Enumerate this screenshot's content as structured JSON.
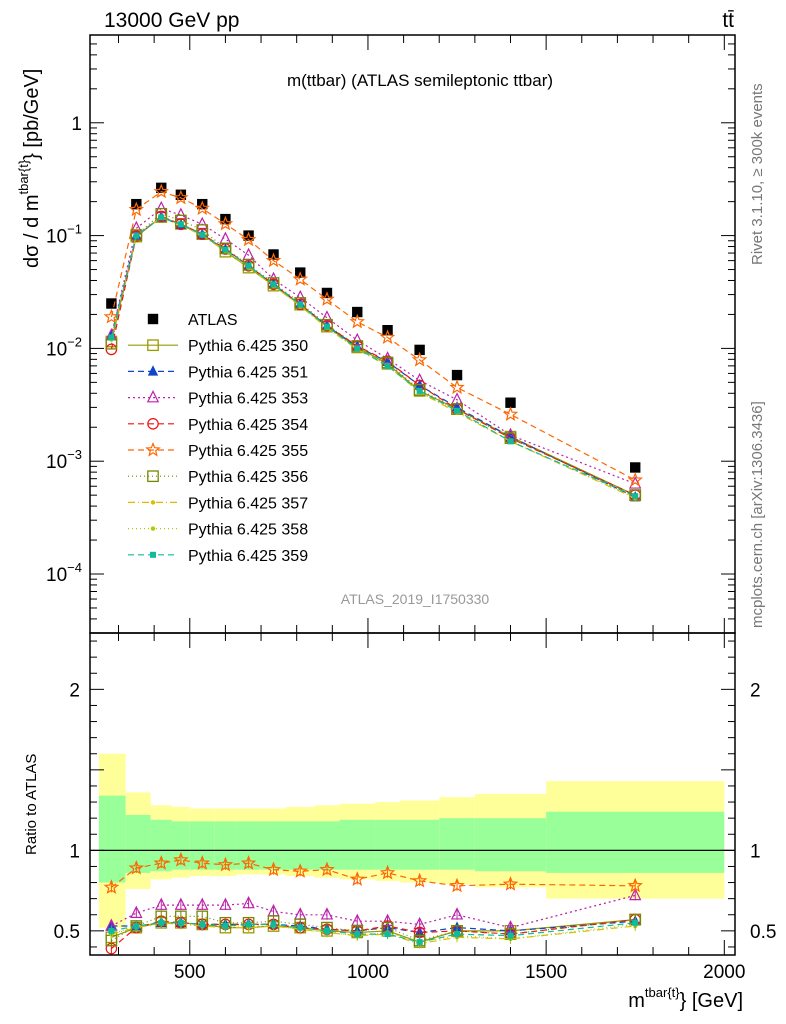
{
  "header": {
    "energy_label": "13000 GeV pp",
    "process_label": "tt̄"
  },
  "side_labels": {
    "rivet": "Rivet 3.1.10, ≥ 300k events",
    "source": "mcplots.cern.ch [arXiv:1306.3436]"
  },
  "chart_data": [
    {
      "type": "line",
      "title": "m(ttbar) (ATLAS semileptonic ttbar)",
      "watermark": "ATLAS_2019_I1750330",
      "ylabel": "dσ / d m^{tbar{t}} [pb/GeV]",
      "ylabel_parts": {
        "main": "dσ / d m",
        "sup": "tbar{t}",
        "tail": "} [pb/GeV]"
      },
      "yscale": "log",
      "ylim": [
        3e-05,
        6
      ],
      "xlim": [
        220,
        2030
      ],
      "y_ticks": [
        {
          "value": 1,
          "base": "1",
          "exp": ""
        },
        {
          "value": 0.1,
          "base": "10",
          "exp": "−1"
        },
        {
          "value": 0.01,
          "base": "10",
          "exp": "−2"
        },
        {
          "value": 0.001,
          "base": "10",
          "exp": "−3"
        },
        {
          "value": 0.0001,
          "base": "10",
          "exp": "−4"
        }
      ],
      "legend_position": "left",
      "x": [
        280,
        350,
        420,
        475,
        535,
        600,
        665,
        735,
        810,
        885,
        970,
        1055,
        1145,
        1250,
        1400,
        1750
      ],
      "series": [
        {
          "name": "ATLAS",
          "color": "#000000",
          "marker": "square-filled",
          "dash": "none",
          "values": [
            0.025,
            0.19,
            0.265,
            0.23,
            0.19,
            0.14,
            0.1,
            0.068,
            0.047,
            0.031,
            0.021,
            0.0145,
            0.0097,
            0.0058,
            0.0033,
            0.00088
          ]
        },
        {
          "name": "Pythia 6.425 350",
          "color": "#999900",
          "marker": "square-open",
          "dash": "solid",
          "values": [
            0.0115,
            0.098,
            0.146,
            0.127,
            0.103,
            0.072,
            0.052,
            0.036,
            0.0244,
            0.0156,
            0.0102,
            0.0073,
            0.0042,
            0.0029,
            0.00165,
            0.0005
          ]
        },
        {
          "name": "Pythia 6.425 351",
          "color": "#1144cc",
          "marker": "triangle-filled",
          "dash": "6,4",
          "values": [
            0.013,
            0.1,
            0.145,
            0.125,
            0.102,
            0.075,
            0.054,
            0.037,
            0.0248,
            0.0158,
            0.0104,
            0.0076,
            0.0047,
            0.003,
            0.00165,
            0.00048
          ]
        },
        {
          "name": "Pythia 6.425 353",
          "color": "#bb22aa",
          "marker": "triangle-open",
          "dash": "2,3",
          "values": [
            0.013,
            0.116,
            0.174,
            0.152,
            0.126,
            0.093,
            0.067,
            0.041,
            0.0283,
            0.0187,
            0.0118,
            0.0081,
            0.0052,
            0.0035,
            0.0017,
            0.00063
          ]
        },
        {
          "name": "Pythia 6.425 354",
          "color": "#ee1111",
          "marker": "circle-open",
          "dash": "6,4",
          "values": [
            0.0098,
            0.099,
            0.148,
            0.126,
            0.103,
            0.076,
            0.054,
            0.037,
            0.0245,
            0.0159,
            0.0105,
            0.0077,
            0.0047,
            0.0029,
            0.0016,
            0.0005
          ]
        },
        {
          "name": "Pythia 6.425 355",
          "color": "#ff6600",
          "marker": "star-open",
          "dash": "6,4",
          "values": [
            0.019,
            0.17,
            0.245,
            0.216,
            0.174,
            0.127,
            0.092,
            0.06,
            0.041,
            0.0272,
            0.0172,
            0.0125,
            0.0079,
            0.0045,
            0.0026,
            0.00068
          ]
        },
        {
          "name": "Pythia 6.425 356",
          "color": "#778800",
          "marker": "square-open",
          "dash": "1,3",
          "values": [
            0.011,
            0.101,
            0.156,
            0.136,
            0.112,
            0.077,
            0.055,
            0.038,
            0.0253,
            0.0162,
            0.0105,
            0.0075,
            0.0043,
            0.0029,
            0.0016,
            0.0005
          ]
        },
        {
          "name": "Pythia 6.425 357",
          "color": "#ddbb00",
          "marker": "dot-small",
          "dash": "7,3,1,3",
          "values": [
            0.012,
            0.1,
            0.145,
            0.124,
            0.1,
            0.073,
            0.052,
            0.036,
            0.0238,
            0.0152,
            0.0098,
            0.007,
            0.0041,
            0.0027,
            0.0015,
            0.00047
          ]
        },
        {
          "name": "Pythia 6.425 358",
          "color": "#aacc00",
          "marker": "dot-small",
          "dash": "1,3",
          "values": [
            0.012,
            0.101,
            0.146,
            0.125,
            0.101,
            0.074,
            0.053,
            0.036,
            0.024,
            0.0153,
            0.0099,
            0.0071,
            0.0041,
            0.0028,
            0.0015,
            0.00048
          ]
        },
        {
          "name": "Pythia 6.425 359",
          "color": "#11bb99",
          "marker": "square-filled-small",
          "dash": "6,4",
          "values": [
            0.0125,
            0.1,
            0.145,
            0.126,
            0.102,
            0.075,
            0.054,
            0.037,
            0.0245,
            0.0156,
            0.01,
            0.007,
            0.0042,
            0.0028,
            0.0015,
            0.00049
          ]
        }
      ]
    },
    {
      "type": "line",
      "ylabel": "Ratio to ATLAS",
      "xlabel": "m^{tbar{t}} [GeV]",
      "xlabel_parts": {
        "main": "m",
        "sup": "tbar{t}",
        "tail": "} [GeV]"
      },
      "ylim": [
        0.35,
        2.35
      ],
      "xlim": [
        220,
        2030
      ],
      "y_ticks": [
        0.5,
        1,
        2
      ],
      "x_ticks": [
        500,
        1000,
        1500,
        2000
      ],
      "reference_line": 1,
      "bins": [
        [
          245,
          320
        ],
        [
          320,
          390
        ],
        [
          390,
          450
        ],
        [
          450,
          500
        ],
        [
          500,
          570
        ],
        [
          570,
          630
        ],
        [
          630,
          700
        ],
        [
          700,
          770
        ],
        [
          770,
          850
        ],
        [
          850,
          920
        ],
        [
          920,
          1020
        ],
        [
          1020,
          1090
        ],
        [
          1090,
          1200
        ],
        [
          1200,
          1300
        ],
        [
          1300,
          1500
        ],
        [
          1500,
          2000
        ]
      ],
      "band_outer": [
        [
          0.52,
          1.6
        ],
        [
          0.76,
          1.36
        ],
        [
          0.82,
          1.28
        ],
        [
          0.83,
          1.27
        ],
        [
          0.84,
          1.26
        ],
        [
          0.84,
          1.26
        ],
        [
          0.85,
          1.26
        ],
        [
          0.85,
          1.26
        ],
        [
          0.84,
          1.27
        ],
        [
          0.83,
          1.28
        ],
        [
          0.82,
          1.29
        ],
        [
          0.81,
          1.3
        ],
        [
          0.8,
          1.31
        ],
        [
          0.79,
          1.33
        ],
        [
          0.77,
          1.35
        ],
        [
          0.7,
          1.43
        ]
      ],
      "band_inner": [
        [
          0.8,
          1.34
        ],
        [
          0.86,
          1.22
        ],
        [
          0.87,
          1.19
        ],
        [
          0.88,
          1.18
        ],
        [
          0.88,
          1.18
        ],
        [
          0.88,
          1.18
        ],
        [
          0.88,
          1.18
        ],
        [
          0.88,
          1.18
        ],
        [
          0.88,
          1.18
        ],
        [
          0.88,
          1.18
        ],
        [
          0.88,
          1.19
        ],
        [
          0.88,
          1.19
        ],
        [
          0.88,
          1.19
        ],
        [
          0.88,
          1.2
        ],
        [
          0.87,
          1.2
        ],
        [
          0.86,
          1.24
        ]
      ],
      "band_colors": {
        "outer": "#ffff99",
        "inner": "#99ff99"
      },
      "x": [
        280,
        350,
        420,
        475,
        535,
        600,
        665,
        735,
        810,
        885,
        970,
        1055,
        1145,
        1250,
        1400,
        1750
      ],
      "series": [
        {
          "name": "Pythia 6.425 350",
          "values": [
            0.46,
            0.52,
            0.55,
            0.55,
            0.54,
            0.52,
            0.52,
            0.53,
            0.52,
            0.5,
            0.49,
            0.5,
            0.43,
            0.5,
            0.5,
            0.57
          ]
        },
        {
          "name": "Pythia 6.425 351",
          "values": [
            0.53,
            0.53,
            0.55,
            0.55,
            0.54,
            0.54,
            0.54,
            0.54,
            0.53,
            0.51,
            0.5,
            0.52,
            0.49,
            0.52,
            0.5,
            0.56
          ]
        },
        {
          "name": "Pythia 6.425 353",
          "values": [
            0.53,
            0.61,
            0.66,
            0.66,
            0.66,
            0.66,
            0.67,
            0.62,
            0.6,
            0.6,
            0.56,
            0.56,
            0.54,
            0.6,
            0.52,
            0.72
          ]
        },
        {
          "name": "Pythia 6.425 354",
          "values": [
            0.39,
            0.52,
            0.56,
            0.55,
            0.54,
            0.54,
            0.54,
            0.54,
            0.52,
            0.51,
            0.5,
            0.53,
            0.49,
            0.5,
            0.48,
            0.57
          ]
        },
        {
          "name": "Pythia 6.425 355",
          "values": [
            0.77,
            0.89,
            0.92,
            0.94,
            0.92,
            0.91,
            0.92,
            0.88,
            0.87,
            0.88,
            0.82,
            0.86,
            0.81,
            0.78,
            0.79,
            0.78
          ]
        },
        {
          "name": "Pythia 6.425 356",
          "values": [
            0.44,
            0.53,
            0.59,
            0.59,
            0.59,
            0.55,
            0.55,
            0.56,
            0.54,
            0.52,
            0.5,
            0.52,
            0.44,
            0.5,
            0.48,
            0.57
          ]
        },
        {
          "name": "Pythia 6.425 357",
          "values": [
            0.48,
            0.52,
            0.55,
            0.54,
            0.53,
            0.52,
            0.52,
            0.53,
            0.51,
            0.49,
            0.47,
            0.48,
            0.42,
            0.46,
            0.45,
            0.53
          ]
        },
        {
          "name": "Pythia 6.425 358",
          "values": [
            0.48,
            0.53,
            0.55,
            0.55,
            0.53,
            0.53,
            0.53,
            0.53,
            0.51,
            0.49,
            0.47,
            0.49,
            0.43,
            0.47,
            0.45,
            0.54
          ]
        },
        {
          "name": "Pythia 6.425 359",
          "values": [
            0.5,
            0.53,
            0.55,
            0.55,
            0.54,
            0.53,
            0.54,
            0.54,
            0.52,
            0.5,
            0.48,
            0.48,
            0.43,
            0.48,
            0.47,
            0.55
          ]
        }
      ]
    }
  ]
}
